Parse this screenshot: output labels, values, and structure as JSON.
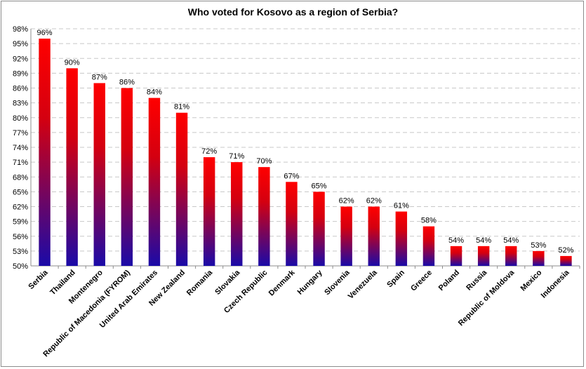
{
  "chart_data": {
    "type": "bar",
    "title": "Who voted for Kosovo as a region of Serbia?",
    "xlabel": "",
    "ylabel": "",
    "categories": [
      "Serbia",
      "Thailand",
      "Montenegro",
      "Republic of Macedonia (FYROM)",
      "United Arab Emirates",
      "New Zealand",
      "Romania",
      "Slovakia",
      "Czech Republic",
      "Denmark",
      "Hungary",
      "Slovenia",
      "Venezuela",
      "Spain",
      "Greece",
      "Poland",
      "Russia",
      "Republic of Moldova",
      "Mexico",
      "Indonesia"
    ],
    "values": [
      96,
      90,
      87,
      86,
      84,
      81,
      72,
      71,
      70,
      67,
      65,
      62,
      62,
      61,
      58,
      54,
      54,
      54,
      53,
      52
    ],
    "value_labels": [
      "96%",
      "90%",
      "87%",
      "86%",
      "84%",
      "81%",
      "72%",
      "71%",
      "70%",
      "67%",
      "65%",
      "62%",
      "62%",
      "61%",
      "58%",
      "54%",
      "54%",
      "54%",
      "53%",
      "52%"
    ],
    "ylim": [
      50,
      98
    ],
    "y_ticks": [
      50,
      53,
      56,
      59,
      62,
      65,
      68,
      71,
      74,
      77,
      80,
      83,
      86,
      89,
      92,
      95,
      98
    ],
    "y_tick_labels": [
      "50%",
      "53%",
      "56%",
      "59%",
      "62%",
      "65%",
      "68%",
      "71%",
      "74%",
      "77%",
      "80%",
      "83%",
      "86%",
      "89%",
      "92%",
      "95%",
      "98%"
    ],
    "grid": true,
    "legend": "none",
    "colors": {
      "bar_top": "#ff0000",
      "bar_bottom": "#1a0aa8",
      "grid": "#c8c8c8",
      "axis": "#8c8c8c"
    }
  }
}
